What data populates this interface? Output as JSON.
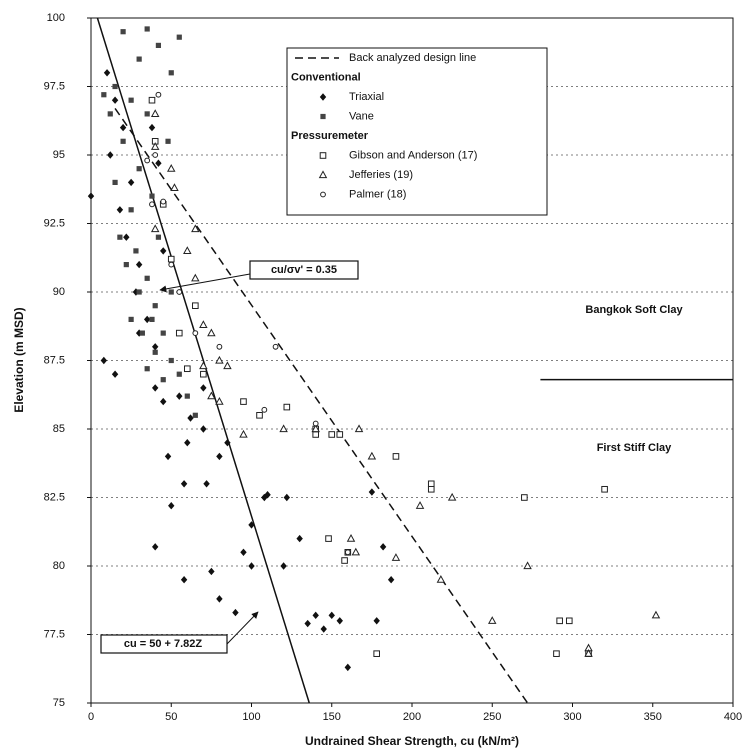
{
  "chart_data": {
    "type": "scatter",
    "xlabel": "Undrained Shear Strength, cu (kN/m²)",
    "ylabel": "Elevation (m MSD)",
    "xlim": [
      0,
      400
    ],
    "xticks": [
      0,
      50,
      100,
      150,
      200,
      250,
      300,
      350,
      400
    ],
    "ylim": [
      75,
      100
    ],
    "yticks": [
      75,
      77.5,
      80,
      82.5,
      85,
      87.5,
      90,
      92.5,
      95,
      97.5,
      100
    ],
    "grid": true,
    "legend": "upper right",
    "series": [
      {
        "name": "Triaxial",
        "group": "Conventional",
        "marker": "diamond",
        "color": "#111111",
        "x": [
          40,
          58,
          75,
          80,
          90,
          100,
          110,
          120,
          135,
          140,
          145,
          150,
          155,
          160,
          178,
          182,
          187,
          175,
          130,
          122,
          108,
          95,
          80,
          70,
          72,
          60,
          58,
          48,
          45,
          40,
          55,
          62,
          70,
          85,
          100,
          50,
          10,
          15,
          20,
          12,
          25,
          18,
          22,
          30,
          28,
          35,
          40,
          30,
          8,
          15,
          0,
          45,
          42,
          38
        ],
        "y": [
          80.7,
          79.5,
          79.8,
          78.8,
          78.3,
          80,
          82.6,
          80,
          77.9,
          78.2,
          77.7,
          78.2,
          78,
          76.3,
          78,
          80.7,
          79.5,
          82.7,
          81,
          82.5,
          82.5,
          80.5,
          84,
          85,
          83,
          84.5,
          83,
          84,
          86,
          86.5,
          86.2,
          85.4,
          86.5,
          84.5,
          81.5,
          82.2,
          98,
          97,
          96,
          95,
          94,
          93,
          92,
          91,
          90,
          89,
          88,
          88.5,
          87.5,
          87,
          93.5,
          91.5,
          94.7,
          96
        ]
      },
      {
        "name": "Vane",
        "group": "Conventional",
        "marker": "square",
        "color": "#444444",
        "x": [
          20,
          35,
          42,
          55,
          50,
          30,
          15,
          25,
          35,
          20,
          30,
          15,
          25,
          18,
          28,
          22,
          35,
          30,
          40,
          50,
          38,
          32,
          45,
          40,
          35,
          50,
          55,
          45,
          60,
          65,
          25,
          12,
          8,
          42,
          38,
          48
        ],
        "y": [
          99.5,
          99.6,
          99,
          99.3,
          98,
          98.5,
          97.5,
          97,
          96.5,
          95.5,
          94.5,
          94,
          93,
          92,
          91.5,
          91,
          90.5,
          90,
          89.5,
          90,
          89,
          88.5,
          88.5,
          87.8,
          87.2,
          87.5,
          87,
          86.8,
          86.2,
          85.5,
          89,
          96.5,
          97.2,
          92,
          93.5,
          95.5
        ]
      },
      {
        "name": "Gibson and Anderson (17)",
        "group": "Pressuremeter",
        "marker": "open-square",
        "color": "#222222",
        "x": [
          38,
          40,
          45,
          50,
          55,
          60,
          70,
          95,
          105,
          122,
          140,
          140,
          150,
          155,
          190,
          148,
          158,
          160,
          212,
          212,
          270,
          320,
          178,
          292,
          298,
          290,
          310,
          65
        ],
        "y": [
          97,
          95.5,
          93.2,
          91.2,
          88.5,
          87.2,
          87,
          86,
          85.5,
          85.8,
          84.8,
          85,
          84.8,
          84.8,
          84,
          81,
          80.2,
          80.5,
          83,
          82.8,
          82.5,
          82.8,
          76.8,
          78,
          78,
          76.8,
          76.8,
          89.5
        ]
      },
      {
        "name": "Jefferies (19)",
        "group": "Pressuremeter",
        "marker": "triangle",
        "color": "#222222",
        "x": [
          40,
          40,
          50,
          52,
          65,
          40,
          60,
          65,
          70,
          75,
          80,
          70,
          75,
          80,
          95,
          120,
          140,
          167,
          175,
          205,
          225,
          162,
          165,
          190,
          218,
          250,
          272,
          310,
          310,
          352,
          85
        ],
        "y": [
          96.5,
          95.3,
          94.5,
          93.8,
          92.3,
          92.3,
          91.5,
          90.5,
          88.8,
          88.5,
          87.5,
          87.3,
          86.2,
          86,
          84.8,
          85,
          85,
          85,
          84,
          82.2,
          82.5,
          81,
          80.5,
          80.3,
          79.5,
          78,
          80,
          77,
          76.8,
          78.2,
          87.3
        ]
      },
      {
        "name": "Palmer (18)",
        "group": "Pressuremeter",
        "marker": "open-circle",
        "color": "#222222",
        "x": [
          45,
          38,
          50,
          55,
          65,
          80,
          115,
          108,
          140,
          42,
          40,
          35,
          160
        ],
        "y": [
          93.3,
          93.2,
          91,
          90,
          88.5,
          88,
          88,
          85.7,
          85.2,
          97.2,
          95,
          94.8,
          80.5
        ]
      }
    ],
    "lines": [
      {
        "name": "Back analyzed design line",
        "style": "dashed",
        "x": [
          15,
          272
        ],
        "y": [
          96.7,
          75
        ]
      },
      {
        "style": "solid",
        "x": [
          4,
          136
        ],
        "y": [
          100,
          75
        ]
      },
      {
        "style": "solid",
        "x": [
          280,
          400
        ],
        "y": [
          86.8,
          86.8
        ]
      }
    ],
    "annotations": [
      "cu/σv' = 0.35",
      "cu = 50 + 7.82Z",
      "Bangkok Soft Clay",
      "First Stiff Clay"
    ]
  }
}
